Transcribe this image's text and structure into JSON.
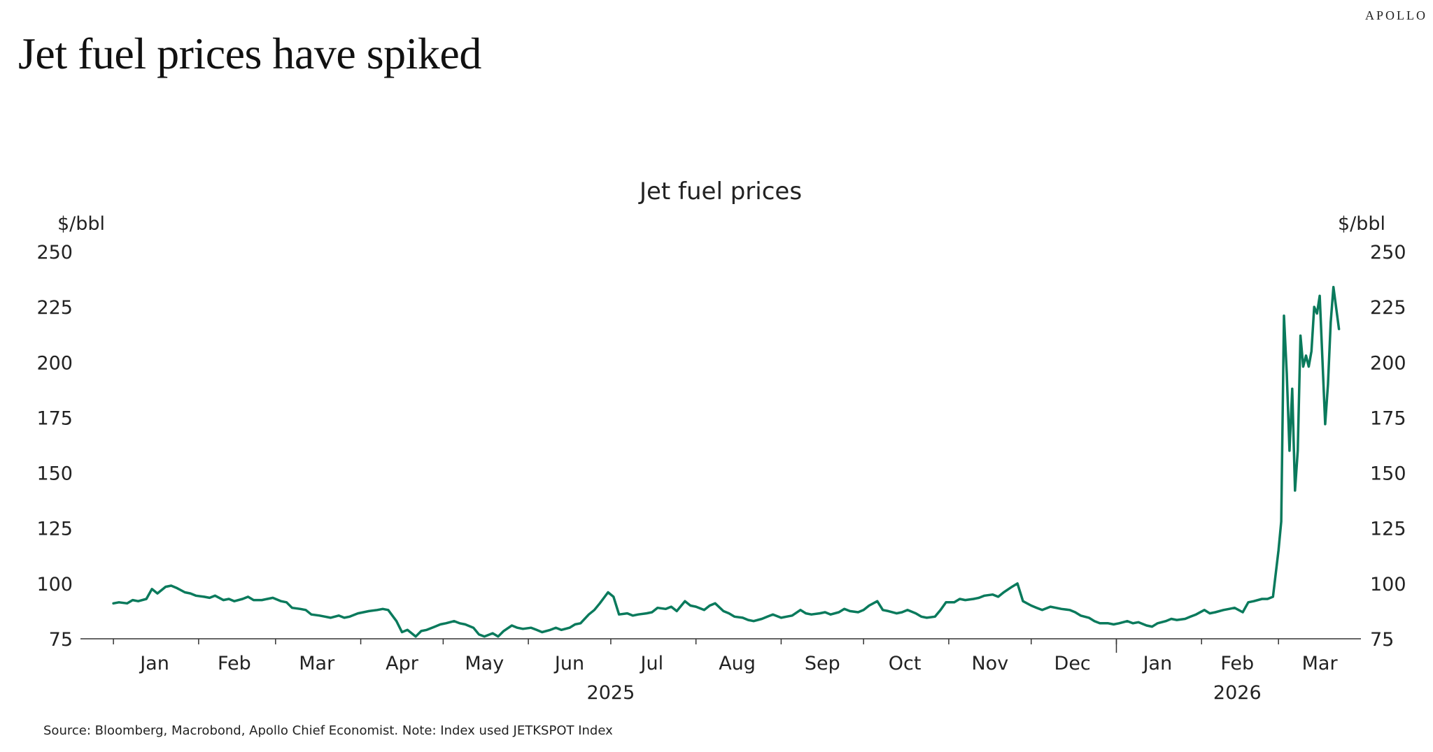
{
  "brand": "APOLLO",
  "headline": "Jet fuel prices have spiked",
  "source": "Source: Bloomberg, Macrobond, Apollo Chief Economist. Note: Index used JETKSPOT Index",
  "colors": {
    "line": "#0a7a5c",
    "text": "#222222",
    "axis": "#333333"
  },
  "chart_data": {
    "type": "line",
    "title": "Jet fuel prices",
    "ylabel_left": "$/bbl",
    "ylabel_right": "$/bbl",
    "ylim": [
      75,
      250
    ],
    "yticks": [
      75,
      100,
      125,
      150,
      175,
      200,
      225,
      250
    ],
    "grid": false,
    "xlim": [
      "2024-12-20",
      "2026-03-31"
    ],
    "month_labels": [
      {
        "label": "Jan",
        "date": "2025-01-16"
      },
      {
        "label": "Feb",
        "date": "2025-02-14"
      },
      {
        "label": "Mar",
        "date": "2025-03-16"
      },
      {
        "label": "Apr",
        "date": "2025-04-16"
      },
      {
        "label": "May",
        "date": "2025-05-16"
      },
      {
        "label": "Jun",
        "date": "2025-06-16"
      },
      {
        "label": "Jul",
        "date": "2025-07-16"
      },
      {
        "label": "Aug",
        "date": "2025-08-16"
      },
      {
        "label": "Sep",
        "date": "2025-09-16"
      },
      {
        "label": "Oct",
        "date": "2025-10-16"
      },
      {
        "label": "Nov",
        "date": "2025-11-16"
      },
      {
        "label": "Dec",
        "date": "2025-12-16"
      },
      {
        "label": "Jan",
        "date": "2026-01-16"
      },
      {
        "label": "Feb",
        "date": "2026-02-14"
      },
      {
        "label": "Mar",
        "date": "2026-03-16"
      }
    ],
    "month_boundaries": [
      "2025-01-01",
      "2025-02-01",
      "2025-03-01",
      "2025-04-01",
      "2025-05-01",
      "2025-06-01",
      "2025-07-01",
      "2025-08-01",
      "2025-09-01",
      "2025-10-01",
      "2025-11-01",
      "2025-12-01",
      "2026-01-01",
      "2026-02-01",
      "2026-03-01"
    ],
    "year_labels": [
      {
        "label": "2025",
        "date": "2025-07-01"
      },
      {
        "label": "2026",
        "date": "2026-02-14"
      }
    ],
    "year_boundary": "2026-01-01",
    "series": [
      {
        "values": [
          [
            "2025-01-01",
            91
          ],
          [
            "2025-01-03",
            91.5
          ],
          [
            "2025-01-06",
            91
          ],
          [
            "2025-01-08",
            92.5
          ],
          [
            "2025-01-10",
            92
          ],
          [
            "2025-01-13",
            93
          ],
          [
            "2025-01-15",
            97.5
          ],
          [
            "2025-01-17",
            95.5
          ],
          [
            "2025-01-20",
            98.5
          ],
          [
            "2025-01-22",
            99
          ],
          [
            "2025-01-24",
            98
          ],
          [
            "2025-01-27",
            96
          ],
          [
            "2025-01-29",
            95.5
          ],
          [
            "2025-01-31",
            94.5
          ],
          [
            "2025-02-03",
            94
          ],
          [
            "2025-02-05",
            93.5
          ],
          [
            "2025-02-07",
            94.5
          ],
          [
            "2025-02-10",
            92.5
          ],
          [
            "2025-02-12",
            93
          ],
          [
            "2025-02-14",
            92
          ],
          [
            "2025-02-17",
            93
          ],
          [
            "2025-02-19",
            94
          ],
          [
            "2025-02-21",
            92.5
          ],
          [
            "2025-02-24",
            92.5
          ],
          [
            "2025-02-26",
            93
          ],
          [
            "2025-02-28",
            93.5
          ],
          [
            "2025-03-03",
            92
          ],
          [
            "2025-03-05",
            91.5
          ],
          [
            "2025-03-07",
            89
          ],
          [
            "2025-03-10",
            88.5
          ],
          [
            "2025-03-12",
            88
          ],
          [
            "2025-03-14",
            86
          ],
          [
            "2025-03-17",
            85.5
          ],
          [
            "2025-03-19",
            85
          ],
          [
            "2025-03-21",
            84.5
          ],
          [
            "2025-03-24",
            85.5
          ],
          [
            "2025-03-26",
            84.5
          ],
          [
            "2025-03-28",
            85
          ],
          [
            "2025-03-31",
            86.5
          ],
          [
            "2025-04-02",
            87
          ],
          [
            "2025-04-04",
            87.5
          ],
          [
            "2025-04-07",
            88
          ],
          [
            "2025-04-09",
            88.5
          ],
          [
            "2025-04-11",
            88
          ],
          [
            "2025-04-14",
            83
          ],
          [
            "2025-04-16",
            78
          ],
          [
            "2025-04-18",
            79
          ],
          [
            "2025-04-21",
            76
          ],
          [
            "2025-04-23",
            78.5
          ],
          [
            "2025-04-25",
            79
          ],
          [
            "2025-04-28",
            80.5
          ],
          [
            "2025-04-30",
            81.5
          ],
          [
            "2025-05-02",
            82
          ],
          [
            "2025-05-05",
            83
          ],
          [
            "2025-05-07",
            82
          ],
          [
            "2025-05-09",
            81.5
          ],
          [
            "2025-05-12",
            80
          ],
          [
            "2025-05-14",
            77
          ],
          [
            "2025-05-16",
            76
          ],
          [
            "2025-05-19",
            77.5
          ],
          [
            "2025-05-21",
            76
          ],
          [
            "2025-05-23",
            78.5
          ],
          [
            "2025-05-26",
            81
          ],
          [
            "2025-05-28",
            80
          ],
          [
            "2025-05-30",
            79.5
          ],
          [
            "2025-06-02",
            80
          ],
          [
            "2025-06-04",
            79
          ],
          [
            "2025-06-06",
            78
          ],
          [
            "2025-06-09",
            79
          ],
          [
            "2025-06-11",
            80
          ],
          [
            "2025-06-13",
            79
          ],
          [
            "2025-06-16",
            80
          ],
          [
            "2025-06-18",
            81.5
          ],
          [
            "2025-06-20",
            82
          ],
          [
            "2025-06-23",
            86
          ],
          [
            "2025-06-25",
            88
          ],
          [
            "2025-06-27",
            91
          ],
          [
            "2025-06-30",
            96
          ],
          [
            "2025-07-02",
            94
          ],
          [
            "2025-07-04",
            86
          ],
          [
            "2025-07-07",
            86.5
          ],
          [
            "2025-07-09",
            85.5
          ],
          [
            "2025-07-11",
            86
          ],
          [
            "2025-07-14",
            86.5
          ],
          [
            "2025-07-16",
            87
          ],
          [
            "2025-07-18",
            89
          ],
          [
            "2025-07-21",
            88.5
          ],
          [
            "2025-07-23",
            89.5
          ],
          [
            "2025-07-25",
            87.5
          ],
          [
            "2025-07-28",
            92
          ],
          [
            "2025-07-30",
            90
          ],
          [
            "2025-08-01",
            89.5
          ],
          [
            "2025-08-04",
            88
          ],
          [
            "2025-08-06",
            90
          ],
          [
            "2025-08-08",
            91
          ],
          [
            "2025-08-11",
            87.5
          ],
          [
            "2025-08-13",
            86.5
          ],
          [
            "2025-08-15",
            85
          ],
          [
            "2025-08-18",
            84.5
          ],
          [
            "2025-08-20",
            83.5
          ],
          [
            "2025-08-22",
            83
          ],
          [
            "2025-08-25",
            84
          ],
          [
            "2025-08-27",
            85
          ],
          [
            "2025-08-29",
            86
          ],
          [
            "2025-09-01",
            84.5
          ],
          [
            "2025-09-03",
            85
          ],
          [
            "2025-09-05",
            85.5
          ],
          [
            "2025-09-08",
            88
          ],
          [
            "2025-09-10",
            86.5
          ],
          [
            "2025-09-12",
            86
          ],
          [
            "2025-09-15",
            86.5
          ],
          [
            "2025-09-17",
            87
          ],
          [
            "2025-09-19",
            86
          ],
          [
            "2025-09-22",
            87
          ],
          [
            "2025-09-24",
            88.5
          ],
          [
            "2025-09-26",
            87.5
          ],
          [
            "2025-09-29",
            87
          ],
          [
            "2025-10-01",
            88
          ],
          [
            "2025-10-03",
            90
          ],
          [
            "2025-10-06",
            92
          ],
          [
            "2025-10-08",
            88
          ],
          [
            "2025-10-10",
            87.5
          ],
          [
            "2025-10-13",
            86.5
          ],
          [
            "2025-10-15",
            87
          ],
          [
            "2025-10-17",
            88
          ],
          [
            "2025-10-20",
            86.5
          ],
          [
            "2025-10-22",
            85
          ],
          [
            "2025-10-24",
            84.5
          ],
          [
            "2025-10-27",
            85
          ],
          [
            "2025-10-29",
            88
          ],
          [
            "2025-10-31",
            91.5
          ],
          [
            "2025-11-03",
            91.5
          ],
          [
            "2025-11-05",
            93
          ],
          [
            "2025-11-07",
            92.5
          ],
          [
            "2025-11-10",
            93
          ],
          [
            "2025-11-12",
            93.5
          ],
          [
            "2025-11-14",
            94.5
          ],
          [
            "2025-11-17",
            95
          ],
          [
            "2025-11-19",
            94
          ],
          [
            "2025-11-21",
            96
          ],
          [
            "2025-11-24",
            98.5
          ],
          [
            "2025-11-26",
            100
          ],
          [
            "2025-11-28",
            92
          ],
          [
            "2025-12-01",
            90
          ],
          [
            "2025-12-03",
            89
          ],
          [
            "2025-12-05",
            88
          ],
          [
            "2025-12-08",
            89.5
          ],
          [
            "2025-12-10",
            89
          ],
          [
            "2025-12-12",
            88.5
          ],
          [
            "2025-12-15",
            88
          ],
          [
            "2025-12-17",
            87
          ],
          [
            "2025-12-19",
            85.5
          ],
          [
            "2025-12-22",
            84.5
          ],
          [
            "2025-12-24",
            83
          ],
          [
            "2025-12-26",
            82
          ],
          [
            "2025-12-29",
            82
          ],
          [
            "2025-12-31",
            81.5
          ],
          [
            "2026-01-02",
            82
          ],
          [
            "2026-01-05",
            83
          ],
          [
            "2026-01-07",
            82
          ],
          [
            "2026-01-09",
            82.5
          ],
          [
            "2026-01-12",
            81
          ],
          [
            "2026-01-14",
            80.5
          ],
          [
            "2026-01-16",
            82
          ],
          [
            "2026-01-19",
            83
          ],
          [
            "2026-01-21",
            84
          ],
          [
            "2026-01-23",
            83.5
          ],
          [
            "2026-01-26",
            84
          ],
          [
            "2026-01-28",
            85
          ],
          [
            "2026-01-30",
            86
          ],
          [
            "2026-02-02",
            88
          ],
          [
            "2026-02-04",
            86.5
          ],
          [
            "2026-02-06",
            87
          ],
          [
            "2026-02-09",
            88
          ],
          [
            "2026-02-11",
            88.5
          ],
          [
            "2026-02-13",
            89
          ],
          [
            "2026-02-16",
            87
          ],
          [
            "2026-02-18",
            91.5
          ],
          [
            "2026-02-20",
            92
          ],
          [
            "2026-02-23",
            93
          ],
          [
            "2026-02-25",
            93
          ],
          [
            "2026-02-27",
            94
          ],
          [
            "2026-03-01",
            115
          ],
          [
            "2026-03-02",
            128
          ],
          [
            "2026-03-03",
            221
          ],
          [
            "2026-03-04",
            195
          ],
          [
            "2026-03-05",
            160
          ],
          [
            "2026-03-06",
            188
          ],
          [
            "2026-03-07",
            142
          ],
          [
            "2026-03-08",
            160
          ],
          [
            "2026-03-09",
            212
          ],
          [
            "2026-03-10",
            198
          ],
          [
            "2026-03-11",
            203
          ],
          [
            "2026-03-12",
            198
          ],
          [
            "2026-03-13",
            205
          ],
          [
            "2026-03-14",
            225
          ],
          [
            "2026-03-15",
            222
          ],
          [
            "2026-03-16",
            230
          ],
          [
            "2026-03-18",
            172
          ],
          [
            "2026-03-19",
            190
          ],
          [
            "2026-03-20",
            218
          ],
          [
            "2026-03-21",
            234
          ],
          [
            "2026-03-23",
            215
          ]
        ]
      }
    ]
  }
}
